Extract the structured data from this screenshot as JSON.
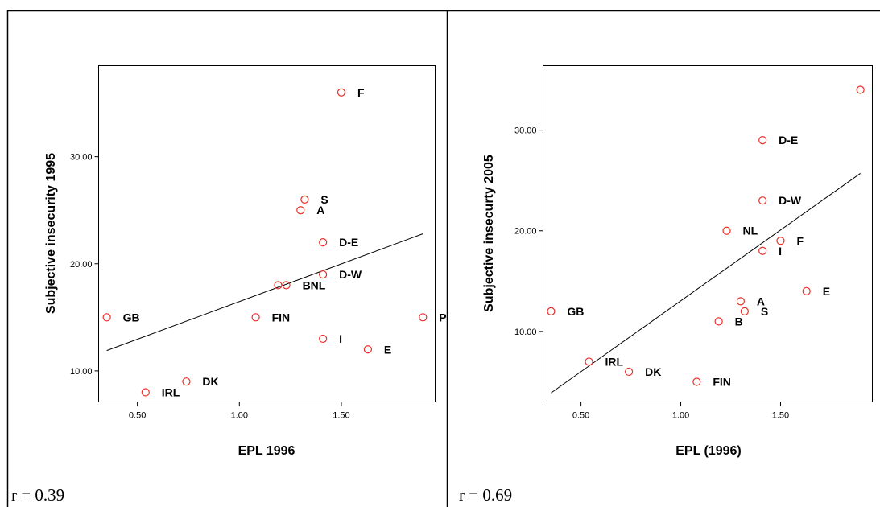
{
  "chart_data": [
    {
      "type": "scatter",
      "xlabel": "EPL 1996",
      "ylabel": "Subjective insecurity 1995",
      "xticks": [
        "0.50",
        "1.00",
        "1.50"
      ],
      "yticks": [
        "10.00",
        "20.00",
        "30.00"
      ],
      "xlim": [
        0.31,
        1.96
      ],
      "ylim": [
        7.1,
        38.5
      ],
      "footnote": "r = 0.39",
      "fit_line": {
        "x": [
          0.35,
          1.9
        ],
        "y": [
          11.9,
          22.8
        ]
      },
      "points": [
        {
          "label": "F",
          "x": 1.5,
          "y": 36.0
        },
        {
          "label": "S",
          "x": 1.32,
          "y": 26.0
        },
        {
          "label": "A",
          "x": 1.3,
          "y": 25.0
        },
        {
          "label": "D-E",
          "x": 1.41,
          "y": 22.0
        },
        {
          "label": "D-W",
          "x": 1.41,
          "y": 19.0
        },
        {
          "label": "",
          "x": 1.19,
          "y": 18.0
        },
        {
          "label": "BNL",
          "x": 1.23,
          "y": 18.0
        },
        {
          "label": "GB",
          "x": 0.35,
          "y": 15.0
        },
        {
          "label": "FIN",
          "x": 1.08,
          "y": 15.0
        },
        {
          "label": "P",
          "x": 1.9,
          "y": 15.0
        },
        {
          "label": "I",
          "x": 1.41,
          "y": 13.0
        },
        {
          "label": "E",
          "x": 1.63,
          "y": 12.0
        },
        {
          "label": "DK",
          "x": 0.74,
          "y": 9.0
        },
        {
          "label": "IRL",
          "x": 0.54,
          "y": 8.0
        }
      ]
    },
    {
      "type": "scatter",
      "xlabel": "EPL (1996)",
      "ylabel": "Subjective insecurty 2005",
      "xticks": [
        "0.50",
        "1.00",
        "1.50"
      ],
      "yticks": [
        "10.00",
        "20.00",
        "30.00"
      ],
      "xlim": [
        0.31,
        1.96
      ],
      "ylim": [
        3.0,
        36.4
      ],
      "footnote": "r = 0.69",
      "fit_line": {
        "x": [
          0.35,
          1.9
        ],
        "y": [
          3.9,
          25.7
        ]
      },
      "points": [
        {
          "label": "",
          "x": 1.9,
          "y": 34.0
        },
        {
          "label": "D-E",
          "x": 1.41,
          "y": 29.0
        },
        {
          "label": "D-W",
          "x": 1.41,
          "y": 23.0
        },
        {
          "label": "NL",
          "x": 1.23,
          "y": 20.0
        },
        {
          "label": "F",
          "x": 1.5,
          "y": 19.0
        },
        {
          "label": "I",
          "x": 1.41,
          "y": 18.0
        },
        {
          "label": "E",
          "x": 1.63,
          "y": 14.0
        },
        {
          "label": "A",
          "x": 1.3,
          "y": 13.0
        },
        {
          "label": "S",
          "x": 1.32,
          "y": 12.0
        },
        {
          "label": "GB",
          "x": 0.35,
          "y": 12.0
        },
        {
          "label": "B",
          "x": 1.19,
          "y": 11.0
        },
        {
          "label": "IRL",
          "x": 0.54,
          "y": 7.0
        },
        {
          "label": "DK",
          "x": 0.74,
          "y": 6.0
        },
        {
          "label": "FIN",
          "x": 1.08,
          "y": 5.0
        }
      ]
    }
  ],
  "colors": {
    "marker": "#e8302a",
    "line": "#000000"
  }
}
